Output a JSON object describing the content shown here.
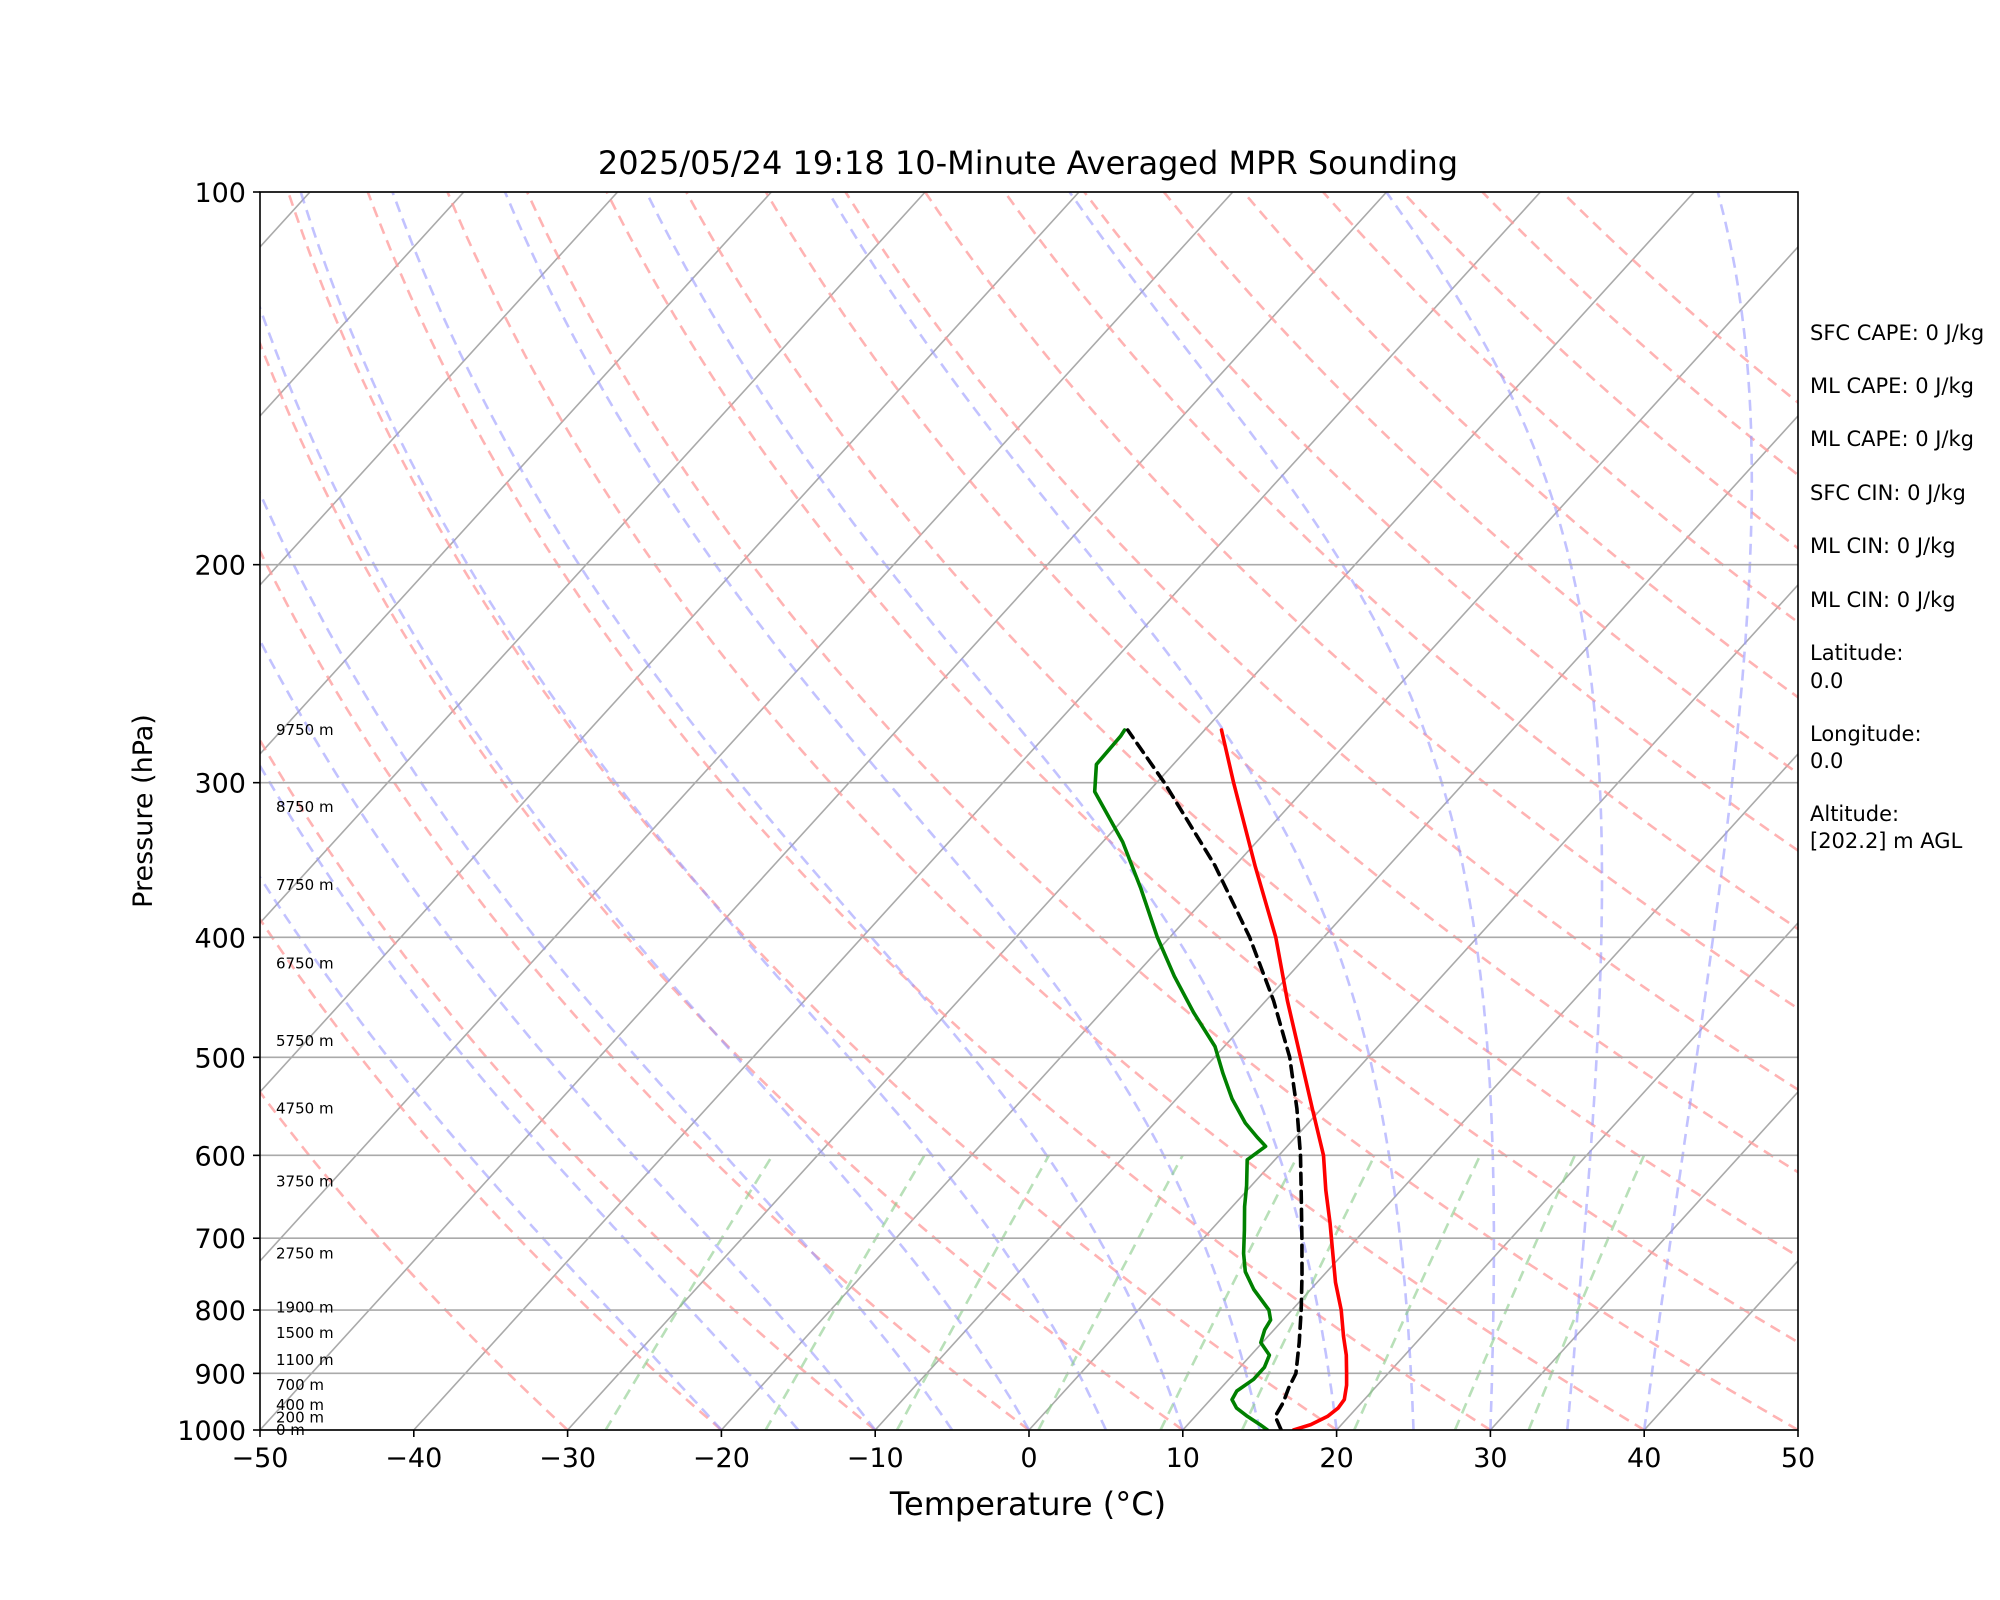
{
  "chart_data": {
    "type": "line",
    "title": "2025/05/24 19:18 10-Minute Averaged MPR Sounding",
    "xlabel": "Temperature (°C)",
    "ylabel": "Pressure (hPa)",
    "xlim": [
      -50,
      50
    ],
    "ylim": [
      1000,
      100
    ],
    "y_scale": "log",
    "skew": "skew-T (isotherms inclined)",
    "x_ticks": [
      "−50",
      "−40",
      "−30",
      "−20",
      "−10",
      "0",
      "10",
      "20",
      "30",
      "40",
      "50"
    ],
    "y_ticks": [
      "100",
      "200",
      "300",
      "400",
      "500",
      "600",
      "700",
      "800",
      "900",
      "1000"
    ],
    "grid": true,
    "height_labels": [
      {
        "p": 1000,
        "label": "0 m"
      },
      {
        "p": 977,
        "label": "200 m"
      },
      {
        "p": 955,
        "label": "400 m"
      },
      {
        "p": 920,
        "label": "700 m"
      },
      {
        "p": 878,
        "label": "1100 m"
      },
      {
        "p": 835,
        "label": "1500 m"
      },
      {
        "p": 796,
        "label": "1900 m"
      },
      {
        "p": 720,
        "label": "2750 m"
      },
      {
        "p": 630,
        "label": "3750 m"
      },
      {
        "p": 550,
        "label": "4750 m"
      },
      {
        "p": 485,
        "label": "5750 m"
      },
      {
        "p": 420,
        "label": "6750 m"
      },
      {
        "p": 363,
        "label": "7750 m"
      },
      {
        "p": 314,
        "label": "8750 m"
      },
      {
        "p": 272,
        "label": "9750 m"
      }
    ],
    "series": [
      {
        "color": "#ff0000",
        "p": [
          1000,
          990,
          975,
          960,
          945,
          920,
          900,
          870,
          840,
          800,
          760,
          720,
          680,
          640,
          600,
          550,
          500,
          450,
          400,
          350,
          300,
          272
        ],
        "x": [
          17.2,
          18.0,
          18.6,
          18.8,
          18.7,
          18.0,
          17.3,
          16.2,
          14.9,
          13.2,
          11.2,
          9.3,
          7.3,
          5.1,
          2.9,
          -0.6,
          -4.4,
          -8.6,
          -13.1,
          -18.7,
          -25.0,
          -28.9
        ]
      },
      {
        "color": "#008000",
        "p": [
          1000,
          990,
          975,
          960,
          945,
          930,
          910,
          890,
          870,
          850,
          830,
          815,
          800,
          770,
          745,
          720,
          690,
          660,
          635,
          605,
          590,
          580,
          565,
          540,
          515,
          490,
          460,
          430,
          400,
          365,
          335,
          305,
          290,
          275,
          272
        ],
        "x": [
          15.5,
          14.7,
          13.4,
          12.2,
          11.4,
          11.2,
          11.6,
          11.6,
          11.2,
          9.9,
          9.4,
          9.2,
          8.5,
          6.3,
          4.7,
          3.5,
          2.2,
          0.8,
          -0.3,
          -1.8,
          -1.4,
          -2.5,
          -4.1,
          -6.4,
          -8.5,
          -10.6,
          -14.0,
          -17.4,
          -20.8,
          -24.8,
          -28.7,
          -33.5,
          -35.0,
          -35.1,
          -35.2
        ]
      },
      {
        "color": "#000000",
        "dashed": true,
        "p": [
          1000,
          975,
          950,
          925,
          900,
          850,
          800,
          750,
          700,
          650,
          600,
          550,
          500,
          450,
          400,
          350,
          300,
          272
        ],
        "x": [
          16.4,
          15.2,
          14.9,
          14.4,
          14.0,
          12.4,
          10.6,
          8.6,
          6.4,
          4.0,
          1.4,
          -1.6,
          -5.1,
          -9.5,
          -14.8,
          -21.3,
          -29.5,
          -35.0
        ]
      }
    ]
  },
  "side_panel": {
    "sfc_cape": "SFC CAPE: 0 J/kg",
    "ml_cape_1": "ML CAPE: 0 J/kg",
    "ml_cape_2": "ML CAPE: 0 J/kg",
    "sfc_cin": "SFC CIN: 0 J/kg",
    "ml_cin_1": "ML CIN: 0 J/kg",
    "ml_cin_2": "ML CIN: 0 J/kg",
    "latitude_label": "Latitude:",
    "latitude_value": "0.0",
    "longitude_label": "Longitude:",
    "longitude_value": "0.0",
    "altitude_label": "Altitude:",
    "altitude_value": "[202.2] m AGL"
  }
}
